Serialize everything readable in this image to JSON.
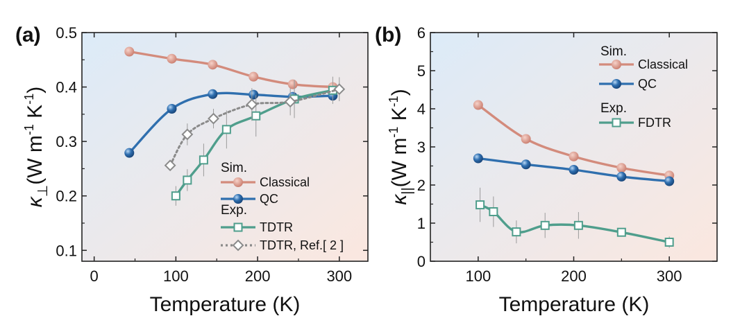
{
  "panels": [
    {
      "panel_label": "(a)",
      "xlabel": "Temperature (K)",
      "ylabel_base": "κ",
      "ylabel_sub": "⊥",
      "ylabel_rest": "(W m",
      "ylabel_exp1": "-1",
      "ylabel_mid": " K",
      "ylabel_exp2": "-1",
      "ylabel_end": ")",
      "legend_sim": "Sim.",
      "legend_exp": "Exp."
    },
    {
      "panel_label": "(b)",
      "xlabel": "Temperature (K)",
      "ylabel_base": "κ",
      "ylabel_sub": "||",
      "ylabel_rest": "(W m",
      "ylabel_exp1": "-1",
      "ylabel_mid": " K",
      "ylabel_exp2": "-1",
      "ylabel_end": ")",
      "legend_sim": "Sim.",
      "legend_exp": "Exp."
    }
  ],
  "chart_data": [
    {
      "type": "line",
      "panel": "(a)",
      "title": "",
      "xlabel": "Temperature (K)",
      "ylabel": "κ⊥(W m-1 K-1)",
      "xlim": [
        -15,
        335
      ],
      "ylim": [
        0.08,
        0.5
      ],
      "xticks": [
        0,
        100,
        200,
        300
      ],
      "yticks": [
        0.1,
        0.2,
        0.3,
        0.4,
        0.5
      ],
      "ytick_labels": [
        "0.1",
        "0.2",
        "0.3",
        "0.4",
        "0.5"
      ],
      "grid": false,
      "background": "gradient light blue to light peach",
      "legend_placement": "bottom-right",
      "series": [
        {
          "name": "Classical",
          "group": "Sim.",
          "marker": "ball",
          "color": "#d38b7c",
          "x": [
            43,
            95,
            145,
            195,
            243,
            292
          ],
          "y": [
            0.465,
            0.452,
            0.441,
            0.419,
            0.405,
            0.4
          ]
        },
        {
          "name": "QC",
          "group": "Sim.",
          "marker": "ball",
          "color": "#2f6fae",
          "x": [
            43,
            95,
            145,
            195,
            243,
            292
          ],
          "y": [
            0.279,
            0.36,
            0.387,
            0.386,
            0.382,
            0.384
          ]
        },
        {
          "name": "TDTR",
          "group": "Exp.",
          "marker": "open-square",
          "color": "#4f9e8c",
          "x": [
            100,
            114,
            134,
            162,
            198,
            245,
            292
          ],
          "y": [
            0.2,
            0.229,
            0.266,
            0.322,
            0.347,
            0.378,
            0.394
          ],
          "err": [
            0.018,
            0.02,
            0.03,
            0.035,
            0.038,
            0.035,
            0.025
          ]
        },
        {
          "name": "TDTR, Ref.[ 2 ]",
          "group": "Exp.",
          "marker": "open-diamond",
          "color": "#8a8a8a",
          "dashed": true,
          "x": [
            93,
            114,
            146,
            193,
            240,
            300
          ],
          "y": [
            0.256,
            0.313,
            0.342,
            0.368,
            0.373,
            0.396
          ],
          "err": [
            0.0,
            0.02,
            0.018,
            0.03,
            0.025,
            0.022
          ]
        }
      ]
    },
    {
      "type": "line",
      "panel": "(b)",
      "title": "",
      "xlabel": "Temperature (K)",
      "ylabel": "κ||(W m-1 K-1)",
      "xlim": [
        50,
        350
      ],
      "ylim": [
        0,
        6
      ],
      "xticks": [
        100,
        200,
        300
      ],
      "yticks": [
        0,
        1,
        2,
        3,
        4,
        5,
        6
      ],
      "ytick_labels": [
        "0",
        "1",
        "2",
        "3",
        "4",
        "5",
        "6"
      ],
      "grid": false,
      "background": "gradient light blue to light peach",
      "legend_placement": "top-right",
      "series": [
        {
          "name": "Classical",
          "group": "Sim.",
          "marker": "ball",
          "color": "#d38b7c",
          "x": [
            100,
            150,
            200,
            250,
            300
          ],
          "y": [
            4.1,
            3.21,
            2.75,
            2.45,
            2.25
          ]
        },
        {
          "name": "QC",
          "group": "Sim.",
          "marker": "ball",
          "color": "#2f6fae",
          "x": [
            100,
            150,
            200,
            250,
            300
          ],
          "y": [
            2.7,
            2.54,
            2.4,
            2.22,
            2.1
          ]
        },
        {
          "name": "FDTR",
          "group": "Exp.",
          "marker": "open-square",
          "color": "#4f9e8c",
          "x": [
            102,
            116,
            140,
            170,
            205,
            250,
            300
          ],
          "y": [
            1.48,
            1.3,
            0.77,
            0.94,
            0.94,
            0.76,
            0.5
          ],
          "err": [
            0.45,
            0.4,
            0.3,
            0.33,
            0.35,
            0.1,
            0.15
          ]
        }
      ]
    }
  ]
}
